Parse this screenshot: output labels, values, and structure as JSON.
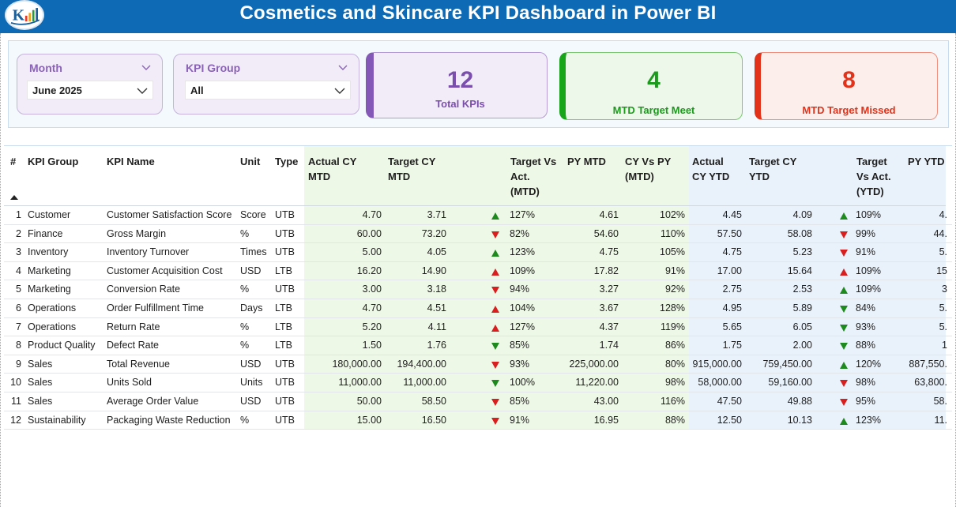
{
  "header": {
    "title": "Cosmetics and Skincare KPI Dashboard  in Power BI"
  },
  "filters": {
    "month": {
      "label": "Month",
      "value": "June 2025"
    },
    "kpi_group": {
      "label": "KPI Group",
      "value": "All"
    }
  },
  "cards": {
    "total": {
      "value": "12",
      "label": "Total KPIs"
    },
    "meet": {
      "value": "4",
      "label": "MTD Target Meet"
    },
    "missed": {
      "value": "8",
      "label": "MTD Target Missed"
    }
  },
  "colors": {
    "header": "#0f6ab5",
    "purple": "#8458b7",
    "green": "#1b9b1c",
    "red": "#e3321a"
  },
  "table": {
    "headers": {
      "num": "#",
      "group": "KPI Group",
      "name": "KPI Name",
      "unit": "Unit",
      "type": "Type",
      "actual_cy_mtd_1": "Actual CY",
      "actual_cy_mtd_2": "MTD",
      "target_cy_mtd_1": "Target CY",
      "target_cy_mtd_2": "MTD",
      "tva_mtd_1": "Target Vs",
      "tva_mtd_2": "Act.",
      "tva_mtd_3": "(MTD)",
      "py_mtd": "PY MTD",
      "cy_vs_py_1": "CY Vs PY",
      "cy_vs_py_2": "(MTD)",
      "actual_cy_ytd_1": "Actual",
      "actual_cy_ytd_2": "CY YTD",
      "target_cy_ytd_1": "Target CY",
      "target_cy_ytd_2": "YTD",
      "tva_ytd_1": "Target",
      "tva_ytd_2": "Vs Act.",
      "tva_ytd_3": "(YTD)",
      "py_ytd": "PY YTD"
    },
    "rows": [
      {
        "n": "1",
        "group": "Customer",
        "name": "Customer Satisfaction Score",
        "unit": "Score",
        "type": "UTB",
        "acm": "4.70",
        "tcm": "3.71",
        "arrow_mtd": "up-green",
        "pct_mtd": "127%",
        "py": "4.61",
        "cyp": "102%",
        "acy": "4.45",
        "tcy": "4.09",
        "arrow_ytd": "up-green",
        "pct_ytd": "109%",
        "pyy": "4."
      },
      {
        "n": "2",
        "group": "Finance",
        "name": "Gross Margin",
        "unit": "%",
        "type": "UTB",
        "acm": "60.00",
        "tcm": "73.20",
        "arrow_mtd": "down-red",
        "pct_mtd": "82%",
        "py": "54.60",
        "cyp": "110%",
        "acy": "57.50",
        "tcy": "58.08",
        "arrow_ytd": "down-red",
        "pct_ytd": "99%",
        "pyy": "44."
      },
      {
        "n": "3",
        "group": "Inventory",
        "name": "Inventory Turnover",
        "unit": "Times",
        "type": "UTB",
        "acm": "5.00",
        "tcm": "4.05",
        "arrow_mtd": "up-green",
        "pct_mtd": "123%",
        "py": "4.75",
        "cyp": "105%",
        "acy": "4.75",
        "tcy": "5.23",
        "arrow_ytd": "down-red",
        "pct_ytd": "91%",
        "pyy": "5."
      },
      {
        "n": "4",
        "group": "Marketing",
        "name": "Customer Acquisition Cost",
        "unit": "USD",
        "type": "LTB",
        "acm": "16.20",
        "tcm": "14.90",
        "arrow_mtd": "up-red",
        "pct_mtd": "109%",
        "py": "17.82",
        "cyp": "91%",
        "acy": "17.00",
        "tcy": "15.64",
        "arrow_ytd": "up-red",
        "pct_ytd": "109%",
        "pyy": "15"
      },
      {
        "n": "5",
        "group": "Marketing",
        "name": "Conversion Rate",
        "unit": "%",
        "type": "UTB",
        "acm": "3.00",
        "tcm": "3.18",
        "arrow_mtd": "down-red",
        "pct_mtd": "94%",
        "py": "3.27",
        "cyp": "92%",
        "acy": "2.75",
        "tcy": "2.53",
        "arrow_ytd": "up-green",
        "pct_ytd": "109%",
        "pyy": "3"
      },
      {
        "n": "6",
        "group": "Operations",
        "name": "Order Fulfillment Time",
        "unit": "Days",
        "type": "LTB",
        "acm": "4.70",
        "tcm": "4.51",
        "arrow_mtd": "up-red",
        "pct_mtd": "104%",
        "py": "3.67",
        "cyp": "128%",
        "acy": "4.95",
        "tcy": "5.89",
        "arrow_ytd": "down-green",
        "pct_ytd": "84%",
        "pyy": "5."
      },
      {
        "n": "7",
        "group": "Operations",
        "name": "Return Rate",
        "unit": "%",
        "type": "LTB",
        "acm": "5.20",
        "tcm": "4.11",
        "arrow_mtd": "up-red",
        "pct_mtd": "127%",
        "py": "4.37",
        "cyp": "119%",
        "acy": "5.65",
        "tcy": "6.05",
        "arrow_ytd": "down-green",
        "pct_ytd": "93%",
        "pyy": "5."
      },
      {
        "n": "8",
        "group": "Product Quality",
        "name": "Defect Rate",
        "unit": "%",
        "type": "LTB",
        "acm": "1.50",
        "tcm": "1.76",
        "arrow_mtd": "down-green",
        "pct_mtd": "85%",
        "py": "1.74",
        "cyp": "86%",
        "acy": "1.75",
        "tcy": "2.00",
        "arrow_ytd": "down-green",
        "pct_ytd": "88%",
        "pyy": "1"
      },
      {
        "n": "9",
        "group": "Sales",
        "name": "Total Revenue",
        "unit": "USD",
        "type": "UTB",
        "acm": "180,000.00",
        "tcm": "194,400.00",
        "arrow_mtd": "down-red",
        "pct_mtd": "93%",
        "py": "225,000.00",
        "cyp": "80%",
        "acy": "915,000.00",
        "tcy": "759,450.00",
        "arrow_ytd": "up-green",
        "pct_ytd": "120%",
        "pyy": "887,550."
      },
      {
        "n": "10",
        "group": "Sales",
        "name": "Units Sold",
        "unit": "Units",
        "type": "UTB",
        "acm": "11,000.00",
        "tcm": "11,000.00",
        "arrow_mtd": "down-green",
        "pct_mtd": "100%",
        "py": "11,220.00",
        "cyp": "98%",
        "acy": "58,000.00",
        "tcy": "59,160.00",
        "arrow_ytd": "down-red",
        "pct_ytd": "98%",
        "pyy": "63,800."
      },
      {
        "n": "11",
        "group": "Sales",
        "name": "Average Order Value",
        "unit": "USD",
        "type": "UTB",
        "acm": "50.00",
        "tcm": "58.50",
        "arrow_mtd": "down-red",
        "pct_mtd": "85%",
        "py": "43.00",
        "cyp": "116%",
        "acy": "47.50",
        "tcy": "49.88",
        "arrow_ytd": "down-red",
        "pct_ytd": "95%",
        "pyy": "58."
      },
      {
        "n": "12",
        "group": "Sustainability",
        "name": "Packaging Waste Reduction",
        "unit": "%",
        "type": "UTB",
        "acm": "15.00",
        "tcm": "16.50",
        "arrow_mtd": "down-red",
        "pct_mtd": "91%",
        "py": "16.95",
        "cyp": "88%",
        "acy": "12.50",
        "tcy": "10.13",
        "arrow_ytd": "up-green",
        "pct_ytd": "123%",
        "pyy": "11."
      }
    ]
  }
}
